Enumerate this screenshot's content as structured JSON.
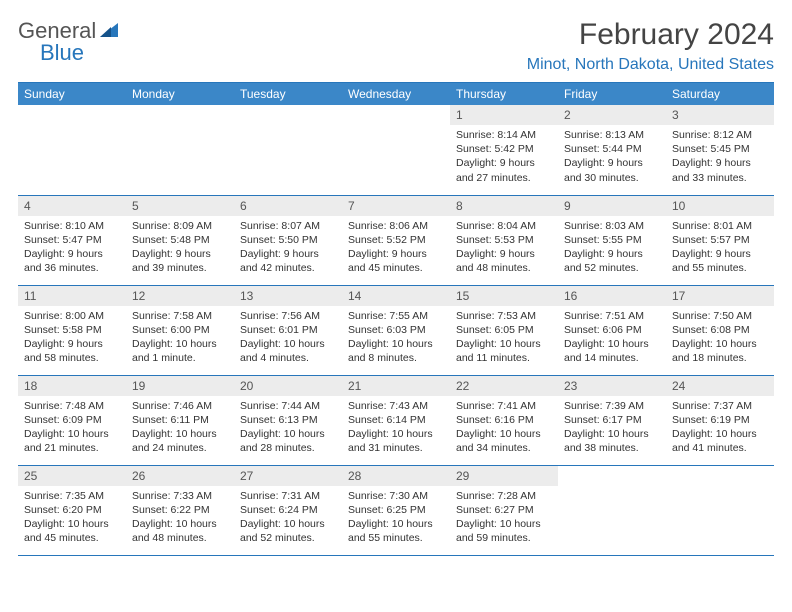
{
  "logo": {
    "general": "General",
    "blue": "Blue"
  },
  "title": "February 2024",
  "location": "Minot, North Dakota, United States",
  "colors": {
    "brand_blue": "#2776bb",
    "header_blue": "#3b87c8",
    "daynum_bg": "#ececec",
    "text": "#333333",
    "title_text": "#444444"
  },
  "dayHeaders": [
    "Sunday",
    "Monday",
    "Tuesday",
    "Wednesday",
    "Thursday",
    "Friday",
    "Saturday"
  ],
  "weeks": [
    [
      null,
      null,
      null,
      null,
      {
        "n": "1",
        "sr": "Sunrise: 8:14 AM",
        "ss": "Sunset: 5:42 PM",
        "dl": "Daylight: 9 hours and 27 minutes."
      },
      {
        "n": "2",
        "sr": "Sunrise: 8:13 AM",
        "ss": "Sunset: 5:44 PM",
        "dl": "Daylight: 9 hours and 30 minutes."
      },
      {
        "n": "3",
        "sr": "Sunrise: 8:12 AM",
        "ss": "Sunset: 5:45 PM",
        "dl": "Daylight: 9 hours and 33 minutes."
      }
    ],
    [
      {
        "n": "4",
        "sr": "Sunrise: 8:10 AM",
        "ss": "Sunset: 5:47 PM",
        "dl": "Daylight: 9 hours and 36 minutes."
      },
      {
        "n": "5",
        "sr": "Sunrise: 8:09 AM",
        "ss": "Sunset: 5:48 PM",
        "dl": "Daylight: 9 hours and 39 minutes."
      },
      {
        "n": "6",
        "sr": "Sunrise: 8:07 AM",
        "ss": "Sunset: 5:50 PM",
        "dl": "Daylight: 9 hours and 42 minutes."
      },
      {
        "n": "7",
        "sr": "Sunrise: 8:06 AM",
        "ss": "Sunset: 5:52 PM",
        "dl": "Daylight: 9 hours and 45 minutes."
      },
      {
        "n": "8",
        "sr": "Sunrise: 8:04 AM",
        "ss": "Sunset: 5:53 PM",
        "dl": "Daylight: 9 hours and 48 minutes."
      },
      {
        "n": "9",
        "sr": "Sunrise: 8:03 AM",
        "ss": "Sunset: 5:55 PM",
        "dl": "Daylight: 9 hours and 52 minutes."
      },
      {
        "n": "10",
        "sr": "Sunrise: 8:01 AM",
        "ss": "Sunset: 5:57 PM",
        "dl": "Daylight: 9 hours and 55 minutes."
      }
    ],
    [
      {
        "n": "11",
        "sr": "Sunrise: 8:00 AM",
        "ss": "Sunset: 5:58 PM",
        "dl": "Daylight: 9 hours and 58 minutes."
      },
      {
        "n": "12",
        "sr": "Sunrise: 7:58 AM",
        "ss": "Sunset: 6:00 PM",
        "dl": "Daylight: 10 hours and 1 minute."
      },
      {
        "n": "13",
        "sr": "Sunrise: 7:56 AM",
        "ss": "Sunset: 6:01 PM",
        "dl": "Daylight: 10 hours and 4 minutes."
      },
      {
        "n": "14",
        "sr": "Sunrise: 7:55 AM",
        "ss": "Sunset: 6:03 PM",
        "dl": "Daylight: 10 hours and 8 minutes."
      },
      {
        "n": "15",
        "sr": "Sunrise: 7:53 AM",
        "ss": "Sunset: 6:05 PM",
        "dl": "Daylight: 10 hours and 11 minutes."
      },
      {
        "n": "16",
        "sr": "Sunrise: 7:51 AM",
        "ss": "Sunset: 6:06 PM",
        "dl": "Daylight: 10 hours and 14 minutes."
      },
      {
        "n": "17",
        "sr": "Sunrise: 7:50 AM",
        "ss": "Sunset: 6:08 PM",
        "dl": "Daylight: 10 hours and 18 minutes."
      }
    ],
    [
      {
        "n": "18",
        "sr": "Sunrise: 7:48 AM",
        "ss": "Sunset: 6:09 PM",
        "dl": "Daylight: 10 hours and 21 minutes."
      },
      {
        "n": "19",
        "sr": "Sunrise: 7:46 AM",
        "ss": "Sunset: 6:11 PM",
        "dl": "Daylight: 10 hours and 24 minutes."
      },
      {
        "n": "20",
        "sr": "Sunrise: 7:44 AM",
        "ss": "Sunset: 6:13 PM",
        "dl": "Daylight: 10 hours and 28 minutes."
      },
      {
        "n": "21",
        "sr": "Sunrise: 7:43 AM",
        "ss": "Sunset: 6:14 PM",
        "dl": "Daylight: 10 hours and 31 minutes."
      },
      {
        "n": "22",
        "sr": "Sunrise: 7:41 AM",
        "ss": "Sunset: 6:16 PM",
        "dl": "Daylight: 10 hours and 34 minutes."
      },
      {
        "n": "23",
        "sr": "Sunrise: 7:39 AM",
        "ss": "Sunset: 6:17 PM",
        "dl": "Daylight: 10 hours and 38 minutes."
      },
      {
        "n": "24",
        "sr": "Sunrise: 7:37 AM",
        "ss": "Sunset: 6:19 PM",
        "dl": "Daylight: 10 hours and 41 minutes."
      }
    ],
    [
      {
        "n": "25",
        "sr": "Sunrise: 7:35 AM",
        "ss": "Sunset: 6:20 PM",
        "dl": "Daylight: 10 hours and 45 minutes."
      },
      {
        "n": "26",
        "sr": "Sunrise: 7:33 AM",
        "ss": "Sunset: 6:22 PM",
        "dl": "Daylight: 10 hours and 48 minutes."
      },
      {
        "n": "27",
        "sr": "Sunrise: 7:31 AM",
        "ss": "Sunset: 6:24 PM",
        "dl": "Daylight: 10 hours and 52 minutes."
      },
      {
        "n": "28",
        "sr": "Sunrise: 7:30 AM",
        "ss": "Sunset: 6:25 PM",
        "dl": "Daylight: 10 hours and 55 minutes."
      },
      {
        "n": "29",
        "sr": "Sunrise: 7:28 AM",
        "ss": "Sunset: 6:27 PM",
        "dl": "Daylight: 10 hours and 59 minutes."
      },
      null,
      null
    ]
  ]
}
